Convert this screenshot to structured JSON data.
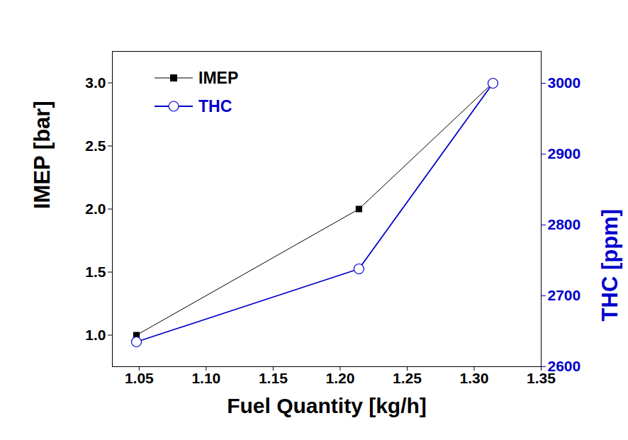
{
  "chart_data": {
    "type": "line",
    "x_label": "Fuel Quantity [kg/h]",
    "y_label": "IMEP [bar]",
    "y2_label": "THC [ppm]",
    "x": [
      1.048,
      1.214,
      1.314
    ],
    "xlim": [
      1.03,
      1.35
    ],
    "xticks": [
      1.05,
      {
        "value": 1.1,
        "label": "1.10"
      },
      1.15,
      {
        "value": 1.2,
        "label": "1.20"
      },
      1.25,
      {
        "value": 1.3,
        "label": "1.30"
      },
      1.35
    ],
    "ylim": [
      0.75,
      3.25
    ],
    "yticks": [
      {
        "value": 1,
        "label": "1.0"
      },
      1.5,
      {
        "value": 2,
        "label": "2.0"
      },
      2.5,
      {
        "value": 3,
        "label": "3.0"
      }
    ],
    "y2lim": [
      2600,
      3045
    ],
    "y2ticks": [
      2600,
      2700,
      2800,
      2900,
      3000
    ],
    "grid": false,
    "legend": "top-left",
    "series": [
      {
        "name": "IMEP",
        "color": "#000000",
        "marker": "square",
        "axis": "y",
        "values": [
          1.0,
          2.0,
          3.0
        ]
      },
      {
        "name": "THC",
        "color": "#0000CC",
        "marker": "circle_open",
        "axis": "y2",
        "values": [
          2635,
          2738,
          3000
        ]
      }
    ]
  }
}
